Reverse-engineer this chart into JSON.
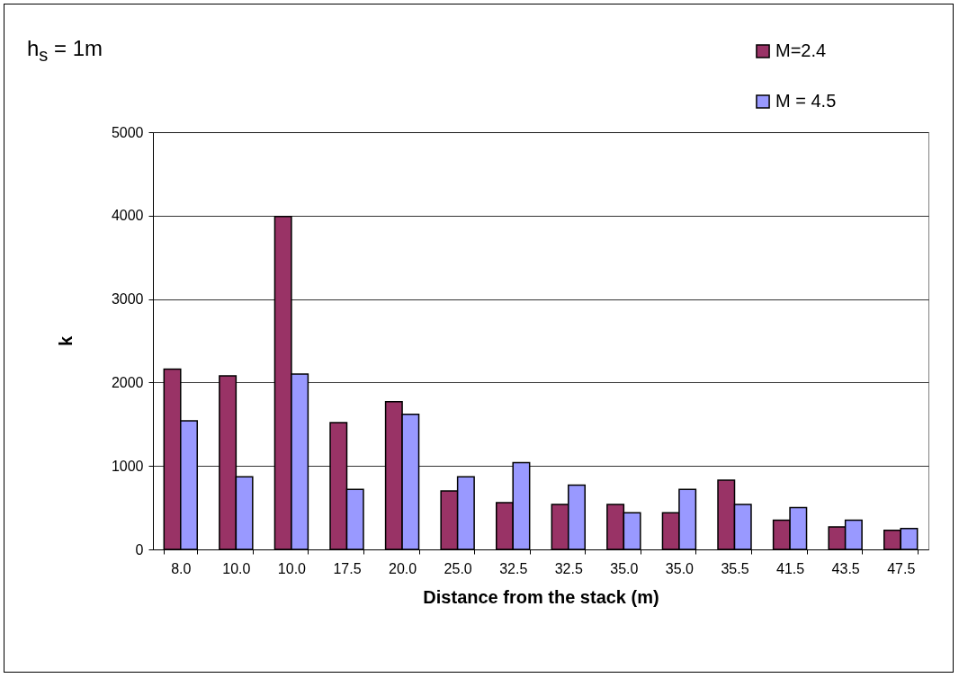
{
  "chart_data": {
    "type": "bar",
    "title": "h$_{s}$ = 1m",
    "xlabel": "Distance from the stack (m)",
    "ylabel": "k",
    "categories": [
      "8.0",
      "10.0",
      "10.0",
      "17.5",
      "20.0",
      "25.0",
      "32.5",
      "32.5",
      "35.0",
      "35.0",
      "35.5",
      "41.5",
      "43.5",
      "47.5"
    ],
    "series": [
      {
        "name": "M=2.4",
        "color": "#993366",
        "values": [
          2160,
          2080,
          3990,
          1520,
          1770,
          700,
          560,
          540,
          540,
          440,
          830,
          350,
          270,
          230
        ]
      },
      {
        "name": "M = 4.5",
        "color": "#9999ff",
        "values": [
          1540,
          870,
          2100,
          720,
          1620,
          870,
          1040,
          770,
          440,
          720,
          540,
          500,
          350,
          250
        ]
      }
    ],
    "ylim": [
      0,
      5000
    ],
    "yticks": [
      0,
      1000,
      2000,
      3000,
      4000,
      5000
    ],
    "grid": "y",
    "legend": "top right"
  }
}
